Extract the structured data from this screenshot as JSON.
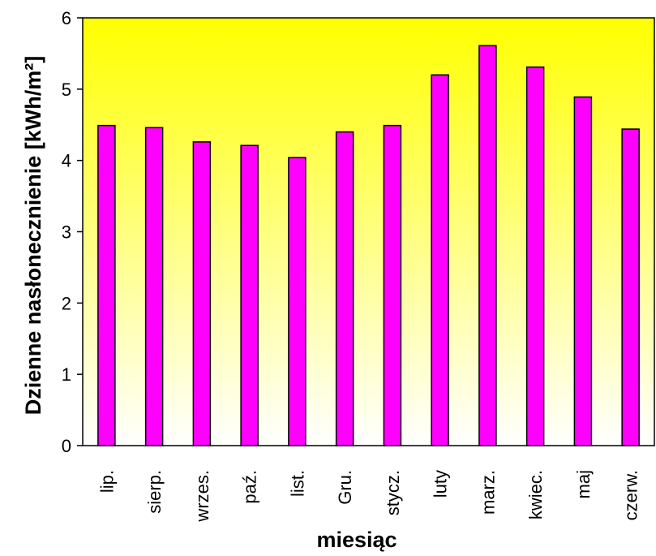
{
  "chart_data": {
    "type": "bar",
    "categories": [
      "lip.",
      "sierp.",
      "wrzes.",
      "paź.",
      "list.",
      "Gru.",
      "stycz.",
      "luty",
      "marz.",
      "kwiec.",
      "maj",
      "czerw."
    ],
    "values": [
      4.49,
      4.46,
      4.26,
      4.21,
      4.04,
      4.4,
      4.49,
      5.2,
      5.61,
      5.31,
      4.89,
      4.44
    ],
    "xlabel": "miesiąc",
    "ylabel": "Dzienne nasłonecznienie [kWh/m²]",
    "ylim": [
      0,
      6
    ],
    "yticks": [
      0,
      1,
      2,
      3,
      4,
      5,
      6
    ],
    "grid": false,
    "legend": "none",
    "colors": {
      "bar_fill": "#ff00ff",
      "bar_stroke": "#000000",
      "plot_top": "#ffff00",
      "plot_bottom": "#ffffff"
    }
  }
}
